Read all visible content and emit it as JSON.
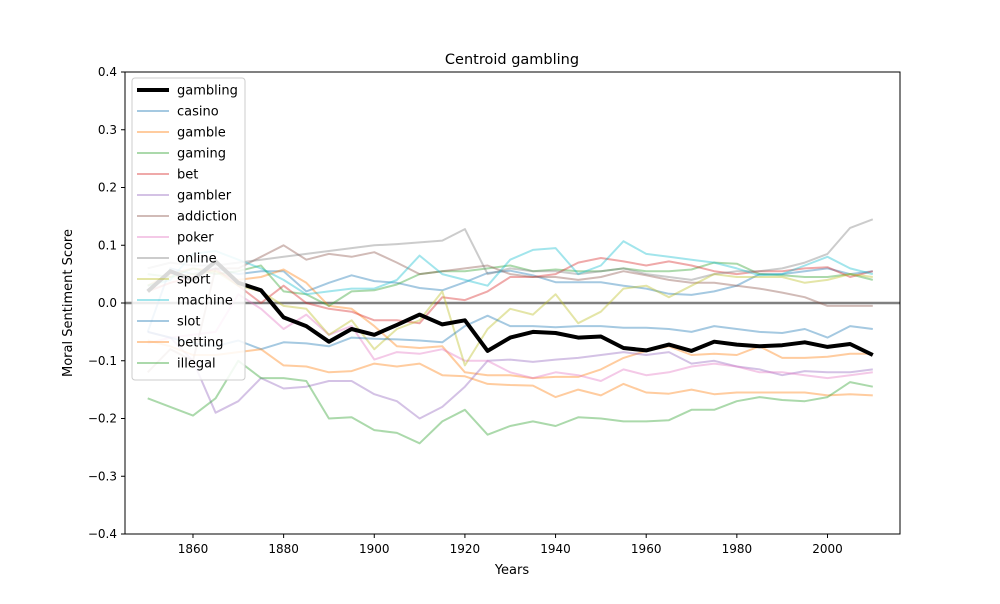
{
  "chart_data": {
    "type": "line",
    "title": "Centroid gambling",
    "xlabel": "Years",
    "ylabel": "Moral Sentiment Score",
    "xlim": [
      1845,
      2016
    ],
    "ylim": [
      -0.4,
      0.4
    ],
    "xticks": [
      1860,
      1880,
      1900,
      1920,
      1940,
      1960,
      1980,
      2000
    ],
    "xtick_labels": [
      "1860",
      "1880",
      "1900",
      "1920",
      "1940",
      "1960",
      "1980",
      "2000"
    ],
    "yticks": [
      0.4,
      0.3,
      0.2,
      0.1,
      0.0,
      -0.1,
      -0.2,
      -0.3,
      -0.4
    ],
    "ytick_labels": [
      "0.4",
      "0.3",
      "0.2",
      "0.1",
      "0.0",
      "−0.1",
      "−0.2",
      "−0.3",
      "−0.4"
    ],
    "reference_line": {
      "y": 0.0,
      "color": "#808080"
    },
    "legend_position": "upper-left",
    "grid": false,
    "x": [
      1850,
      1855,
      1860,
      1865,
      1870,
      1875,
      1880,
      1885,
      1890,
      1895,
      1900,
      1905,
      1910,
      1915,
      1920,
      1925,
      1930,
      1935,
      1940,
      1945,
      1950,
      1955,
      1960,
      1965,
      1970,
      1975,
      1980,
      1985,
      1990,
      1995,
      2000,
      2005,
      2010
    ],
    "series": [
      {
        "name": "gambling",
        "color": "#000000",
        "width": 4,
        "opacity": 1.0,
        "values": [
          0.02,
          0.055,
          0.04,
          0.072,
          0.035,
          0.022,
          -0.025,
          -0.04,
          -0.067,
          -0.045,
          -0.055,
          -0.038,
          -0.02,
          -0.037,
          -0.03,
          -0.083,
          -0.06,
          -0.05,
          -0.052,
          -0.06,
          -0.058,
          -0.078,
          -0.082,
          -0.072,
          -0.083,
          -0.067,
          -0.072,
          -0.075,
          -0.073,
          -0.068,
          -0.076,
          -0.071,
          -0.09
        ]
      },
      {
        "name": "casino",
        "color": "#1f77b4",
        "width": 2,
        "opacity": 0.4,
        "values": [
          -0.05,
          0.06,
          0.05,
          0.06,
          0.05,
          0.055,
          0.055,
          0.02,
          0.035,
          0.048,
          0.038,
          0.035,
          0.026,
          0.022,
          0.036,
          0.052,
          0.056,
          0.048,
          0.036,
          0.036,
          0.036,
          0.03,
          0.025,
          0.016,
          0.014,
          0.02,
          0.03,
          0.05,
          0.05,
          0.055,
          0.06,
          0.05,
          0.055
        ]
      },
      {
        "name": "gamble",
        "color": "#ff7f0e",
        "width": 2,
        "opacity": 0.4,
        "values": [
          0.03,
          0.05,
          0.06,
          0.055,
          0.04,
          0.045,
          0.058,
          0.035,
          -0.005,
          -0.01,
          -0.04,
          -0.075,
          -0.078,
          -0.075,
          -0.12,
          -0.125,
          -0.125,
          -0.13,
          -0.128,
          -0.128,
          -0.115,
          -0.095,
          -0.083,
          -0.075,
          -0.09,
          -0.088,
          -0.09,
          -0.075,
          -0.095,
          -0.095,
          -0.093,
          -0.088,
          -0.088
        ]
      },
      {
        "name": "gaming",
        "color": "#2ca02c",
        "width": 2,
        "opacity": 0.4,
        "values": [
          0.05,
          0.045,
          0.06,
          0.05,
          0.055,
          0.065,
          0.02,
          0.015,
          -0.005,
          0.02,
          0.022,
          0.032,
          0.05,
          0.055,
          0.055,
          0.06,
          0.065,
          0.055,
          0.058,
          0.055,
          0.055,
          0.06,
          0.055,
          0.055,
          0.058,
          0.07,
          0.068,
          0.05,
          0.048,
          0.045,
          0.045,
          0.05,
          0.04
        ]
      },
      {
        "name": "bet",
        "color": "#d62728",
        "width": 2,
        "opacity": 0.4,
        "values": [
          0.02,
          0.035,
          0.045,
          0.06,
          0.03,
          0.0,
          0.03,
          0.0,
          -0.01,
          -0.015,
          -0.03,
          -0.03,
          -0.035,
          0.01,
          0.005,
          0.02,
          0.045,
          0.045,
          0.05,
          0.07,
          0.078,
          0.072,
          0.065,
          0.072,
          0.065,
          0.055,
          0.05,
          0.055,
          0.055,
          0.06,
          0.062,
          0.045,
          0.055
        ]
      },
      {
        "name": "gambler",
        "color": "#9467bd",
        "width": 2,
        "opacity": 0.4,
        "values": [
          -0.05,
          -0.06,
          -0.1,
          -0.19,
          -0.17,
          -0.13,
          -0.148,
          -0.145,
          -0.135,
          -0.135,
          -0.158,
          -0.17,
          -0.2,
          -0.18,
          -0.145,
          -0.1,
          -0.098,
          -0.102,
          -0.098,
          -0.095,
          -0.09,
          -0.085,
          -0.09,
          -0.085,
          -0.105,
          -0.1,
          -0.11,
          -0.115,
          -0.125,
          -0.118,
          -0.12,
          -0.12,
          -0.115
        ]
      },
      {
        "name": "addiction",
        "color": "#8c564b",
        "width": 2,
        "opacity": 0.4,
        "values": [
          -0.12,
          -0.08,
          -0.1,
          0.06,
          0.06,
          0.08,
          0.1,
          0.075,
          0.085,
          0.08,
          0.088,
          0.07,
          0.05,
          0.055,
          0.06,
          0.065,
          0.05,
          0.045,
          0.045,
          0.04,
          0.045,
          0.055,
          0.048,
          0.04,
          0.035,
          0.035,
          0.03,
          0.025,
          0.018,
          0.01,
          -0.005,
          -0.005,
          -0.005
        ]
      },
      {
        "name": "poker",
        "color": "#e377c2",
        "width": 2,
        "opacity": 0.4,
        "values": [
          -0.07,
          -0.06,
          -0.055,
          -0.05,
          0.015,
          -0.01,
          -0.045,
          -0.02,
          -0.055,
          -0.04,
          -0.098,
          -0.085,
          -0.088,
          -0.08,
          -0.1,
          -0.1,
          -0.12,
          -0.13,
          -0.12,
          -0.125,
          -0.135,
          -0.115,
          -0.125,
          -0.12,
          -0.11,
          -0.105,
          -0.11,
          -0.12,
          -0.12,
          -0.125,
          -0.13,
          -0.125,
          -0.12
        ]
      },
      {
        "name": "online",
        "color": "#7f7f7f",
        "width": 2,
        "opacity": 0.4,
        "values": [
          0.06,
          0.07,
          0.065,
          0.065,
          0.07,
          0.075,
          0.08,
          0.085,
          0.09,
          0.095,
          0.1,
          0.102,
          0.105,
          0.108,
          0.128,
          0.05,
          0.06,
          0.055,
          0.055,
          0.05,
          0.055,
          0.06,
          0.05,
          0.045,
          0.04,
          0.05,
          0.055,
          0.055,
          0.06,
          0.07,
          0.085,
          0.13,
          0.145
        ]
      },
      {
        "name": "sport",
        "color": "#bcbd22",
        "width": 2,
        "opacity": 0.4,
        "values": [
          0.03,
          0.045,
          0.05,
          0.055,
          0.03,
          0.02,
          -0.005,
          -0.01,
          -0.055,
          -0.03,
          -0.08,
          -0.045,
          -0.03,
          0.02,
          -0.108,
          -0.045,
          -0.01,
          -0.02,
          0.015,
          -0.035,
          -0.015,
          0.025,
          0.03,
          0.01,
          0.03,
          0.05,
          0.045,
          0.045,
          0.045,
          0.035,
          0.04,
          0.05,
          0.045
        ]
      },
      {
        "name": "machine",
        "color": "#17becf",
        "width": 2,
        "opacity": 0.4,
        "values": [
          0.03,
          0.04,
          0.085,
          0.09,
          0.075,
          0.06,
          0.04,
          0.015,
          0.02,
          0.025,
          0.025,
          0.04,
          0.082,
          0.05,
          0.04,
          0.03,
          0.075,
          0.092,
          0.095,
          0.05,
          0.065,
          0.107,
          0.085,
          0.08,
          0.075,
          0.07,
          0.06,
          0.048,
          0.05,
          0.065,
          0.08,
          0.06,
          0.05
        ]
      },
      {
        "name": "slot",
        "color": "#1f77b4",
        "width": 2,
        "opacity": 0.4,
        "values": [
          -0.05,
          -0.06,
          -0.07,
          -0.075,
          -0.065,
          -0.08,
          -0.068,
          -0.07,
          -0.075,
          -0.06,
          -0.062,
          -0.063,
          -0.065,
          -0.068,
          -0.04,
          -0.022,
          -0.04,
          -0.04,
          -0.042,
          -0.04,
          -0.04,
          -0.043,
          -0.043,
          -0.045,
          -0.05,
          -0.04,
          -0.045,
          -0.05,
          -0.052,
          -0.045,
          -0.06,
          -0.04,
          -0.045
        ]
      },
      {
        "name": "betting",
        "color": "#ff7f0e",
        "width": 2,
        "opacity": 0.4,
        "values": [
          -0.065,
          -0.075,
          -0.09,
          -0.09,
          -0.085,
          -0.08,
          -0.108,
          -0.11,
          -0.12,
          -0.118,
          -0.105,
          -0.11,
          -0.105,
          -0.125,
          -0.127,
          -0.14,
          -0.142,
          -0.143,
          -0.163,
          -0.15,
          -0.16,
          -0.14,
          -0.155,
          -0.157,
          -0.15,
          -0.158,
          -0.155,
          -0.155,
          -0.155,
          -0.155,
          -0.16,
          -0.158,
          -0.16
        ]
      },
      {
        "name": "illegal",
        "color": "#2ca02c",
        "width": 2,
        "opacity": 0.4,
        "values": [
          -0.165,
          -0.18,
          -0.195,
          -0.165,
          -0.1,
          -0.13,
          -0.13,
          -0.135,
          -0.2,
          -0.198,
          -0.22,
          -0.225,
          -0.243,
          -0.205,
          -0.185,
          -0.228,
          -0.213,
          -0.205,
          -0.213,
          -0.198,
          -0.2,
          -0.205,
          -0.205,
          -0.203,
          -0.185,
          -0.185,
          -0.17,
          -0.163,
          -0.168,
          -0.17,
          -0.163,
          -0.137,
          -0.145
        ]
      }
    ]
  }
}
